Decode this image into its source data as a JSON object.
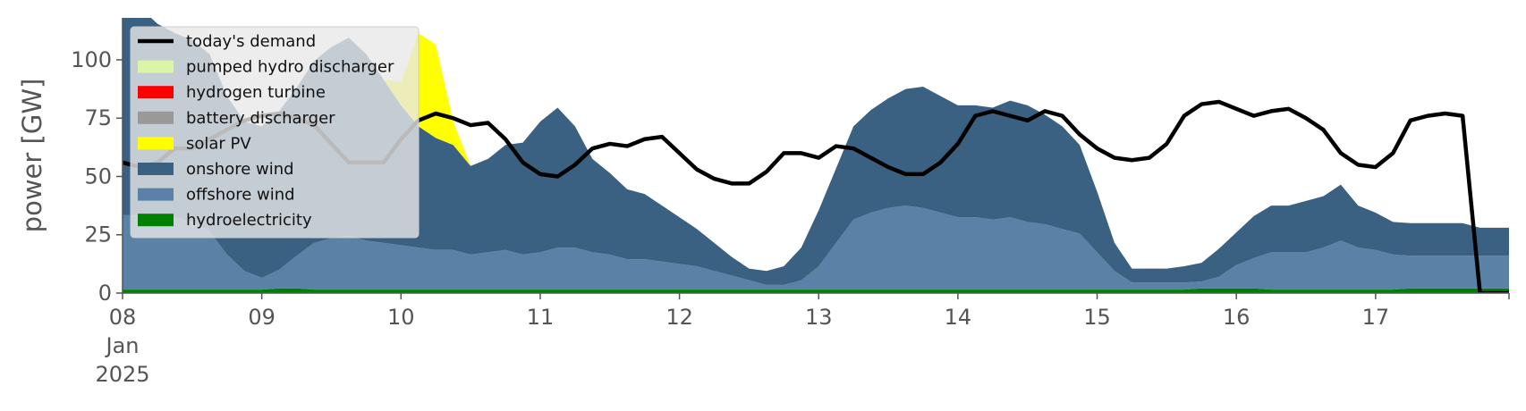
{
  "chart_data": {
    "type": "area",
    "ylabel": "power [GW]",
    "ylim": [
      0,
      118
    ],
    "xlim": [
      "2025-01-08T00:00",
      "2025-01-17T23:00"
    ],
    "yticks": [
      0,
      25,
      50,
      75,
      100
    ],
    "ytick_labels": [
      "0",
      "25",
      "50",
      "75",
      "100"
    ],
    "xticks": [
      "2025-01-08",
      "2025-01-09",
      "2025-01-10",
      "2025-01-11",
      "2025-01-12",
      "2025-01-13",
      "2025-01-14",
      "2025-01-15",
      "2025-01-16",
      "2025-01-17"
    ],
    "xtick_labels": [
      "08",
      "09",
      "10",
      "11",
      "12",
      "13",
      "14",
      "15",
      "16",
      "17"
    ],
    "xtick_sublabels": [
      "Jan",
      "2025"
    ],
    "legend_position": "upper-left",
    "grid": false,
    "x_hours": [
      0,
      3,
      6,
      9,
      12,
      15,
      18,
      21,
      24,
      27,
      30,
      33,
      36,
      39,
      42,
      45,
      48,
      51,
      54,
      57,
      60,
      63,
      66,
      69,
      72,
      75,
      78,
      81,
      84,
      87,
      90,
      93,
      96,
      99,
      102,
      105,
      108,
      111,
      114,
      117,
      120,
      123,
      126,
      129,
      132,
      135,
      138,
      141,
      144,
      147,
      150,
      153,
      156,
      159,
      162,
      165,
      168,
      171,
      174,
      177,
      180,
      183,
      186,
      189,
      192,
      195,
      198,
      201,
      204,
      207,
      210,
      213,
      216,
      219,
      222,
      225,
      228,
      231,
      234,
      237,
      239
    ],
    "series": [
      {
        "name": "hydroelectricity",
        "color": "#008000",
        "values": [
          1.5,
          1.5,
          1.5,
          1.5,
          1.5,
          1.5,
          1.5,
          1.5,
          1.5,
          2,
          2,
          1.5,
          1.5,
          1.5,
          1.5,
          1.5,
          1.5,
          1.5,
          1.5,
          1.5,
          1.5,
          1.5,
          1.5,
          1.5,
          1.5,
          1.5,
          1.5,
          1.5,
          1.5,
          1.5,
          1.5,
          1.5,
          1.5,
          1.5,
          1.5,
          1.5,
          1.5,
          1.5,
          1.5,
          1.5,
          1.5,
          1.5,
          1.5,
          1.5,
          1.5,
          1.5,
          1.5,
          1.5,
          1.5,
          1.5,
          1.5,
          1.5,
          1.5,
          1.5,
          1.5,
          1.5,
          1.5,
          1.5,
          1.5,
          1.5,
          1.5,
          1.5,
          2,
          2,
          2,
          2,
          1.5,
          1.5,
          1.5,
          1.5,
          1.5,
          1.5,
          1.5,
          1.5,
          2,
          2,
          2,
          2,
          2,
          2,
          2
        ]
      },
      {
        "name": "offshore wind",
        "color": "#5a81a6",
        "values": [
          32,
          32,
          32,
          31,
          29,
          25,
          15,
          8,
          5,
          8,
          14,
          20,
          22,
          23,
          21,
          20,
          19,
          18,
          17,
          17,
          15,
          16,
          17,
          15,
          16,
          18,
          18,
          16,
          15,
          13,
          13,
          12,
          11,
          10,
          8,
          6,
          4,
          2,
          2,
          4,
          10,
          20,
          30,
          33,
          35,
          36,
          35,
          33,
          31,
          31,
          30,
          31,
          29,
          28,
          26,
          24,
          16,
          8,
          3,
          3,
          3,
          3,
          3,
          5,
          10,
          13,
          16,
          16,
          16,
          18,
          21,
          18,
          17,
          15,
          14,
          14,
          14,
          14,
          14,
          14,
          14
        ]
      },
      {
        "name": "onshore wind",
        "color": "#3b6182",
        "values": [
          95,
          89,
          82,
          79,
          78,
          76,
          68,
          64,
          65,
          68,
          72,
          78,
          82,
          85,
          80,
          70,
          60,
          52,
          48,
          45,
          38,
          40,
          45,
          48,
          56,
          60,
          52,
          40,
          35,
          30,
          28,
          24,
          20,
          16,
          12,
          8,
          5,
          6,
          8,
          14,
          24,
          32,
          40,
          44,
          47,
          50,
          52,
          50,
          48,
          48,
          48,
          50,
          50,
          47,
          44,
          38,
          26,
          12,
          6,
          6,
          6,
          7,
          8,
          12,
          14,
          18,
          20,
          20,
          22,
          22,
          24,
          18,
          16,
          14,
          14,
          14,
          14,
          14,
          12,
          12,
          12
        ]
      },
      {
        "name": "solar PV",
        "color": "#ffff00",
        "values": [
          0,
          0,
          0,
          0,
          0,
          0,
          0,
          0,
          0,
          0,
          0,
          0,
          0,
          0,
          0,
          0,
          10,
          40,
          40,
          10,
          0,
          0,
          0,
          0,
          0,
          0,
          0,
          0,
          0,
          0,
          0,
          0,
          0,
          0,
          0,
          0,
          0,
          0,
          0,
          0,
          0,
          0,
          0,
          0,
          0,
          0,
          0,
          0,
          0,
          0,
          0,
          0,
          0,
          0,
          0,
          0,
          0,
          0,
          0,
          0,
          0,
          0,
          0,
          0,
          0,
          0,
          0,
          0,
          0,
          0,
          0,
          0,
          0,
          0,
          0,
          0,
          0,
          0,
          0,
          0,
          0
        ]
      },
      {
        "name": "battery discharger",
        "color": "#999999",
        "values": [
          0,
          0,
          0,
          0,
          0,
          0,
          0,
          0,
          0,
          0,
          0,
          0,
          0,
          0,
          0,
          0,
          0,
          0,
          0,
          0,
          0,
          0,
          0,
          0,
          0,
          0,
          0,
          0,
          0,
          0,
          0,
          0,
          0,
          0,
          0,
          0,
          0,
          0,
          0,
          0,
          0,
          0,
          0,
          0,
          0,
          0,
          0,
          0,
          0,
          0,
          0,
          0,
          0,
          0,
          0,
          0,
          0,
          0,
          0,
          0,
          0,
          0,
          0,
          0,
          0,
          0,
          0,
          0,
          0,
          0,
          0,
          0,
          0,
          0,
          0,
          0,
          0,
          0,
          0,
          0,
          0
        ]
      },
      {
        "name": "hydrogen turbine",
        "color": "#ff0000",
        "values": [
          0,
          0,
          0,
          0,
          0,
          0,
          0,
          0,
          0,
          0,
          0,
          0,
          0,
          0,
          0,
          0,
          0,
          0,
          0,
          0,
          0,
          0,
          0,
          0,
          0,
          0,
          0,
          0,
          0,
          0,
          0,
          0,
          0,
          0,
          0,
          0,
          0,
          0,
          0,
          0,
          0,
          0,
          0,
          0,
          0,
          0,
          0,
          0,
          0,
          0,
          0,
          0,
          0,
          0,
          0,
          0,
          0,
          0,
          0,
          0,
          0,
          0,
          0,
          0,
          0,
          0,
          0,
          0,
          0,
          0,
          0,
          0,
          0,
          0,
          0,
          0,
          0,
          0,
          0,
          0,
          0
        ]
      },
      {
        "name": "pumped hydro discharger",
        "color": "#d9f5a8",
        "values": [
          0,
          0,
          0,
          0,
          0,
          0,
          0,
          0,
          0,
          0,
          0,
          0,
          0,
          0,
          0,
          0,
          0,
          0,
          0,
          0,
          0,
          0,
          0,
          0,
          0,
          0,
          0,
          0,
          0,
          0,
          0,
          0,
          0,
          0,
          0,
          0,
          0,
          0,
          0,
          0,
          0,
          0,
          0,
          0,
          0,
          0,
          0,
          0,
          0,
          0,
          0,
          0,
          0,
          0,
          0,
          0,
          0,
          0,
          0,
          0,
          0,
          0,
          0,
          0,
          0,
          0,
          0,
          0,
          0,
          0,
          0,
          0,
          0,
          0,
          0,
          0,
          0,
          0,
          0,
          0,
          0
        ]
      }
    ],
    "demand": {
      "name": "today's demand",
      "color": "#000000",
      "values": [
        56,
        54,
        56,
        62,
        62,
        66,
        70,
        74,
        76,
        77,
        75,
        72,
        64,
        56,
        56,
        56,
        66,
        74,
        77,
        75,
        72,
        73,
        66,
        56,
        51,
        50,
        55,
        62,
        64,
        63,
        66,
        67,
        60,
        53,
        49,
        47,
        47,
        52,
        60,
        60,
        58,
        63,
        62,
        58,
        54,
        51,
        51,
        56,
        64,
        76,
        78,
        76,
        74,
        78,
        76,
        68,
        62,
        58,
        57,
        58,
        64,
        76,
        81,
        82,
        79,
        76,
        78,
        79,
        75,
        70,
        60,
        55,
        54,
        60,
        74,
        76,
        77,
        76,
        0,
        0,
        0
      ]
    }
  },
  "legend": {
    "items": [
      {
        "label": "today's demand",
        "color": "#000000",
        "kind": "line"
      },
      {
        "label": "pumped hydro discharger",
        "color": "#d9f5a8",
        "kind": "patch"
      },
      {
        "label": "hydrogen turbine",
        "color": "#ff0000",
        "kind": "patch"
      },
      {
        "label": "battery discharger",
        "color": "#999999",
        "kind": "patch"
      },
      {
        "label": "solar PV",
        "color": "#ffff00",
        "kind": "patch"
      },
      {
        "label": "onshore wind",
        "color": "#3b6182",
        "kind": "patch"
      },
      {
        "label": "offshore wind",
        "color": "#5a81a6",
        "kind": "patch"
      },
      {
        "label": "hydroelectricity",
        "color": "#008000",
        "kind": "patch"
      }
    ]
  }
}
